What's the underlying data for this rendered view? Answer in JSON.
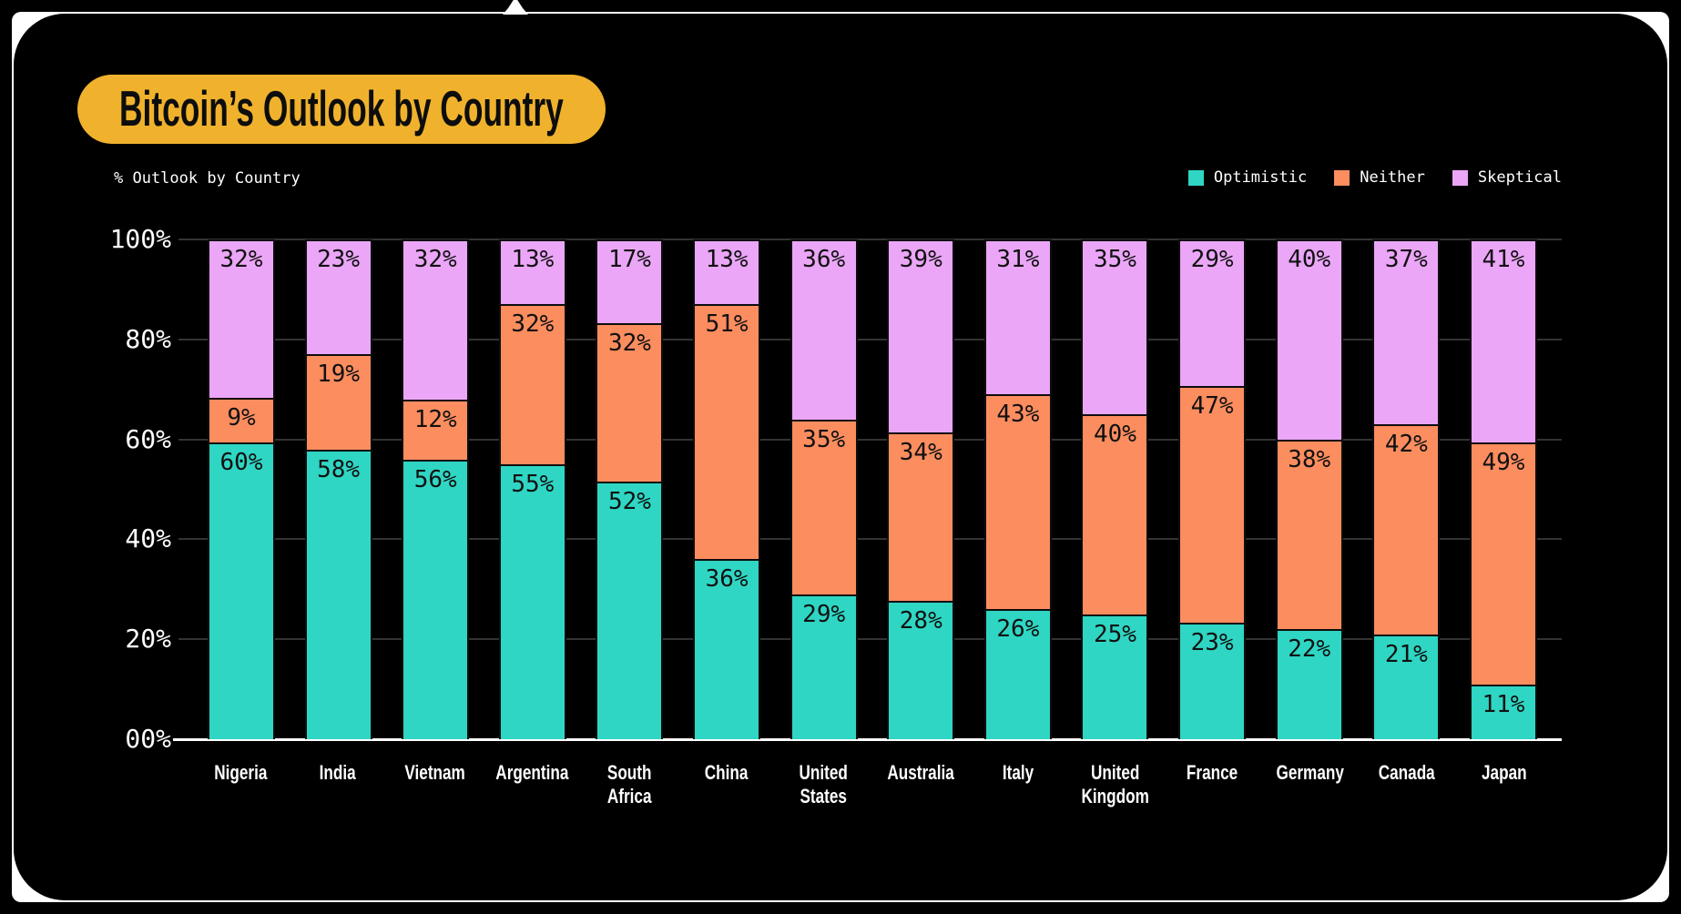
{
  "page": {
    "background_color": "#000000",
    "frame_color": "#ffffff",
    "accent_color": "#f0b22d"
  },
  "header": {
    "title": "Bitcoin’s Outlook by Country",
    "title_pill_color": "#f0b22d",
    "title_text_color": "#0d0d0d"
  },
  "axis_label": "% Outlook by Country",
  "legend": {
    "items": [
      {
        "label": "Optimistic",
        "color": "#2fd6c3"
      },
      {
        "label": "Neither",
        "color": "#fb8d5f"
      },
      {
        "label": "Skeptical",
        "color": "#eba6f7"
      }
    ]
  },
  "chart_data": {
    "type": "bar",
    "stacked": true,
    "title": "Bitcoin’s Outlook by Country",
    "ylabel": "% Outlook by Country",
    "ylim": [
      0,
      100
    ],
    "yticks": [
      "00%",
      "20%",
      "40%",
      "60%",
      "80%",
      "100%"
    ],
    "grid": true,
    "legend_position": "top-right",
    "categories": [
      "Nigeria",
      "India",
      "Vietnam",
      "Argentina",
      "South Africa",
      "China",
      "United States",
      "Australia",
      "Italy",
      "United Kingdom",
      "France",
      "Germany",
      "Canada",
      "Japan"
    ],
    "series": [
      {
        "name": "Optimistic",
        "color": "#2fd6c3",
        "values": [
          60,
          58,
          56,
          55,
          52,
          36,
          29,
          28,
          26,
          25,
          23,
          22,
          21,
          11
        ]
      },
      {
        "name": "Neither",
        "color": "#fb8d5f",
        "values": [
          9,
          19,
          12,
          32,
          32,
          51,
          35,
          34,
          43,
          40,
          47,
          38,
          42,
          49
        ]
      },
      {
        "name": "Skeptical",
        "color": "#eba6f7",
        "values": [
          32,
          23,
          32,
          13,
          17,
          13,
          36,
          39,
          31,
          35,
          29,
          40,
          37,
          41
        ]
      }
    ],
    "value_label_suffix": "%",
    "gridline_color": "#333333",
    "baseline_color": "#ffffff"
  }
}
